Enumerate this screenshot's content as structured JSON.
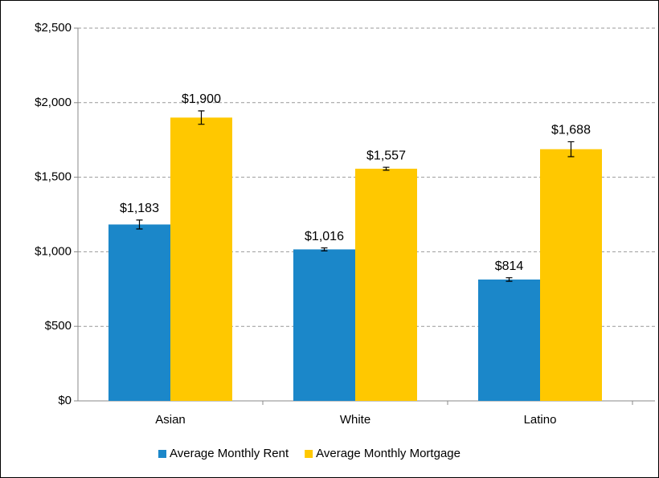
{
  "chart_data": {
    "type": "bar",
    "categories": [
      "Asian",
      "White",
      "Latino"
    ],
    "series": [
      {
        "name": "Average Monthly Rent",
        "color": "#1b87c9",
        "values": [
          1183,
          1016,
          814
        ],
        "value_labels": [
          "$1,183",
          "$1,016",
          "$814"
        ],
        "errors": [
          30,
          10,
          12
        ]
      },
      {
        "name": "Average Monthly Mortgage",
        "color": "#ffc800",
        "values": [
          1900,
          1557,
          1688
        ],
        "value_labels": [
          "$1,900",
          "$1,557",
          "$1,688"
        ],
        "errors": [
          45,
          10,
          50
        ]
      }
    ],
    "ylim": [
      0,
      2500
    ],
    "yticks": [
      {
        "value": 0,
        "label": "$0"
      },
      {
        "value": 500,
        "label": "$500"
      },
      {
        "value": 1000,
        "label": "$1,000"
      },
      {
        "value": 1500,
        "label": "$1,500"
      },
      {
        "value": 2000,
        "label": "$2,000"
      },
      {
        "value": 2500,
        "label": "$2,500"
      }
    ],
    "grid": true,
    "legend": "bottom"
  }
}
